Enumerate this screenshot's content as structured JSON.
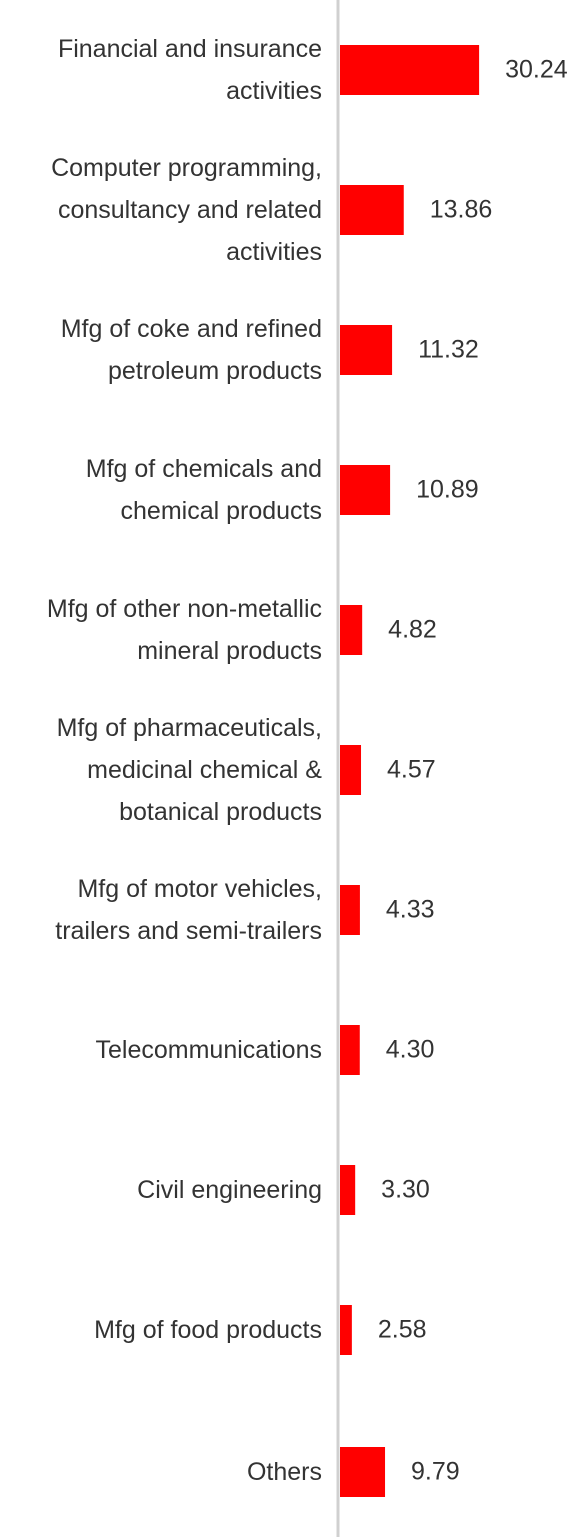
{
  "chart_data": {
    "type": "bar",
    "orientation": "horizontal",
    "color": "#ff0000",
    "categories": [
      "Financial and insurance activities",
      "Computer programming, consultancy and related activities",
      "Mfg of coke and refined petroleum products",
      "Mfg of chemicals and chemical products",
      "Mfg of other non-metallic mineral products",
      "Mfg of pharmaceuticals, medicinal chemical & botanical products",
      "Mfg of motor vehicles, trailers and semi-trailers",
      "Telecommunications",
      "Civil engineering",
      "Mfg of food products",
      "Others"
    ],
    "values": [
      30.24,
      13.86,
      11.32,
      10.89,
      4.82,
      4.57,
      4.33,
      4.3,
      3.3,
      2.58,
      9.79
    ],
    "value_labels": [
      "30.24",
      "13.86",
      "11.32",
      "10.89",
      "4.82",
      "4.57",
      "4.33",
      "4.30",
      "3.30",
      "2.58",
      "9.79"
    ]
  }
}
